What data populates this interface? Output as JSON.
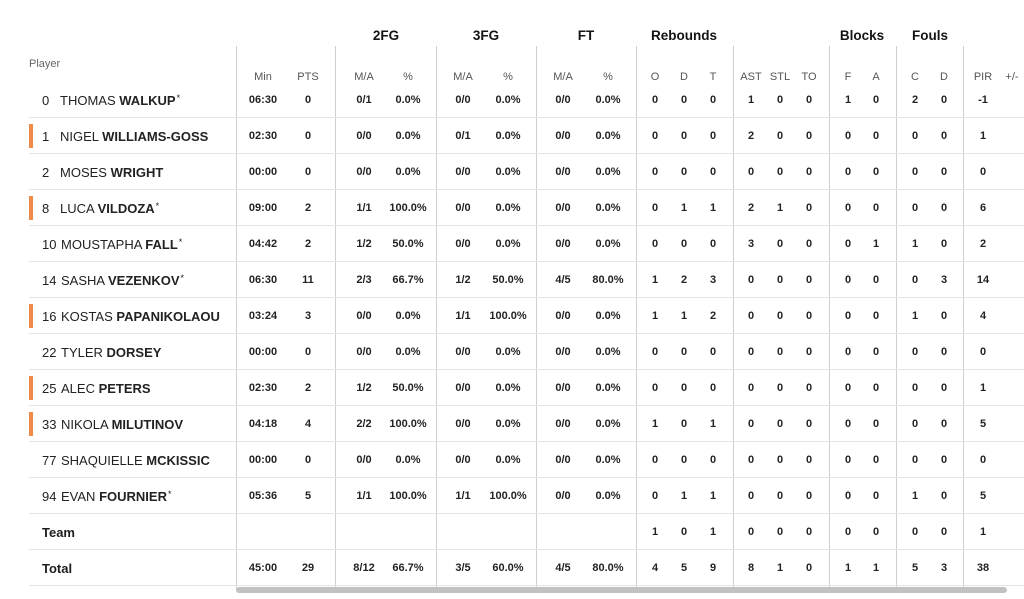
{
  "table": {
    "groups": [
      "2FG",
      "3FG",
      "FT",
      "Rebounds",
      "Blocks",
      "Fouls"
    ],
    "player_header": "Player",
    "subheaders": [
      "Min",
      "PTS",
      "M/A",
      "%",
      "M/A",
      "%",
      "M/A",
      "%",
      "O",
      "D",
      "T",
      "AST",
      "STL",
      "TO",
      "F",
      "A",
      "C",
      "D",
      "PIR",
      "+/-"
    ],
    "rows": [
      {
        "num": "0",
        "first": "THOMAS",
        "last": "WALKUP",
        "star": "*",
        "bar": false,
        "stats": [
          "06:30",
          "0",
          "0/1",
          "0.0%",
          "0/0",
          "0.0%",
          "0/0",
          "0.0%",
          "0",
          "0",
          "0",
          "1",
          "0",
          "0",
          "1",
          "0",
          "2",
          "0",
          "-1",
          ""
        ]
      },
      {
        "num": "1",
        "first": "NIGEL",
        "last": "WILLIAMS-GOSS",
        "star": "",
        "bar": true,
        "stats": [
          "02:30",
          "0",
          "0/0",
          "0.0%",
          "0/1",
          "0.0%",
          "0/0",
          "0.0%",
          "0",
          "0",
          "0",
          "2",
          "0",
          "0",
          "0",
          "0",
          "0",
          "0",
          "1",
          ""
        ]
      },
      {
        "num": "2",
        "first": "MOSES",
        "last": "WRIGHT",
        "star": "",
        "bar": false,
        "stats": [
          "00:00",
          "0",
          "0/0",
          "0.0%",
          "0/0",
          "0.0%",
          "0/0",
          "0.0%",
          "0",
          "0",
          "0",
          "0",
          "0",
          "0",
          "0",
          "0",
          "0",
          "0",
          "0",
          ""
        ]
      },
      {
        "num": "8",
        "first": "LUCA",
        "last": "VILDOZA",
        "star": "*",
        "bar": true,
        "stats": [
          "09:00",
          "2",
          "1/1",
          "100.0%",
          "0/0",
          "0.0%",
          "0/0",
          "0.0%",
          "0",
          "1",
          "1",
          "2",
          "1",
          "0",
          "0",
          "0",
          "0",
          "0",
          "6",
          ""
        ]
      },
      {
        "num": "10",
        "first": "MOUSTAPHA",
        "last": "FALL",
        "star": "*",
        "bar": false,
        "stats": [
          "04:42",
          "2",
          "1/2",
          "50.0%",
          "0/0",
          "0.0%",
          "0/0",
          "0.0%",
          "0",
          "0",
          "0",
          "3",
          "0",
          "0",
          "0",
          "1",
          "1",
          "0",
          "2",
          ""
        ]
      },
      {
        "num": "14",
        "first": "SASHA",
        "last": "VEZENKOV",
        "star": "*",
        "bar": false,
        "stats": [
          "06:30",
          "11",
          "2/3",
          "66.7%",
          "1/2",
          "50.0%",
          "4/5",
          "80.0%",
          "1",
          "2",
          "3",
          "0",
          "0",
          "0",
          "0",
          "0",
          "0",
          "3",
          "14",
          ""
        ]
      },
      {
        "num": "16",
        "first": "KOSTAS",
        "last": "PAPANIKOLAOU",
        "star": "",
        "bar": true,
        "stats": [
          "03:24",
          "3",
          "0/0",
          "0.0%",
          "1/1",
          "100.0%",
          "0/0",
          "0.0%",
          "1",
          "1",
          "2",
          "0",
          "0",
          "0",
          "0",
          "0",
          "1",
          "0",
          "4",
          ""
        ]
      },
      {
        "num": "22",
        "first": "TYLER",
        "last": "DORSEY",
        "star": "",
        "bar": false,
        "stats": [
          "00:00",
          "0",
          "0/0",
          "0.0%",
          "0/0",
          "0.0%",
          "0/0",
          "0.0%",
          "0",
          "0",
          "0",
          "0",
          "0",
          "0",
          "0",
          "0",
          "0",
          "0",
          "0",
          ""
        ]
      },
      {
        "num": "25",
        "first": "ALEC",
        "last": "PETERS",
        "star": "",
        "bar": true,
        "stats": [
          "02:30",
          "2",
          "1/2",
          "50.0%",
          "0/0",
          "0.0%",
          "0/0",
          "0.0%",
          "0",
          "0",
          "0",
          "0",
          "0",
          "0",
          "0",
          "0",
          "0",
          "0",
          "1",
          ""
        ]
      },
      {
        "num": "33",
        "first": "NIKOLA",
        "last": "MILUTINOV",
        "star": "",
        "bar": true,
        "stats": [
          "04:18",
          "4",
          "2/2",
          "100.0%",
          "0/0",
          "0.0%",
          "0/0",
          "0.0%",
          "1",
          "0",
          "1",
          "0",
          "0",
          "0",
          "0",
          "0",
          "0",
          "0",
          "5",
          ""
        ]
      },
      {
        "num": "77",
        "first": "SHAQUIELLE",
        "last": "MCKISSIC",
        "star": "",
        "bar": false,
        "stats": [
          "00:00",
          "0",
          "0/0",
          "0.0%",
          "0/0",
          "0.0%",
          "0/0",
          "0.0%",
          "0",
          "0",
          "0",
          "0",
          "0",
          "0",
          "0",
          "0",
          "0",
          "0",
          "0",
          ""
        ]
      },
      {
        "num": "94",
        "first": "EVAN",
        "last": "FOURNIER",
        "star": "*",
        "bar": false,
        "stats": [
          "05:36",
          "5",
          "1/1",
          "100.0%",
          "1/1",
          "100.0%",
          "0/0",
          "0.0%",
          "0",
          "1",
          "1",
          "0",
          "0",
          "0",
          "0",
          "0",
          "1",
          "0",
          "5",
          ""
        ]
      }
    ],
    "team": {
      "label": "Team",
      "stats": [
        "",
        "",
        "",
        "",
        "",
        "",
        "",
        "",
        "1",
        "0",
        "1",
        "0",
        "0",
        "0",
        "0",
        "0",
        "0",
        "0",
        "1",
        ""
      ]
    },
    "total": {
      "label": "Total",
      "stats": [
        "45:00",
        "29",
        "8/12",
        "66.7%",
        "3/5",
        "60.0%",
        "4/5",
        "80.0%",
        "4",
        "5",
        "9",
        "8",
        "1",
        "0",
        "1",
        "1",
        "5",
        "3",
        "38",
        ""
      ]
    }
  },
  "colors": {
    "accent_bar": "#f08a4b",
    "divider": "#cfcfcf"
  }
}
